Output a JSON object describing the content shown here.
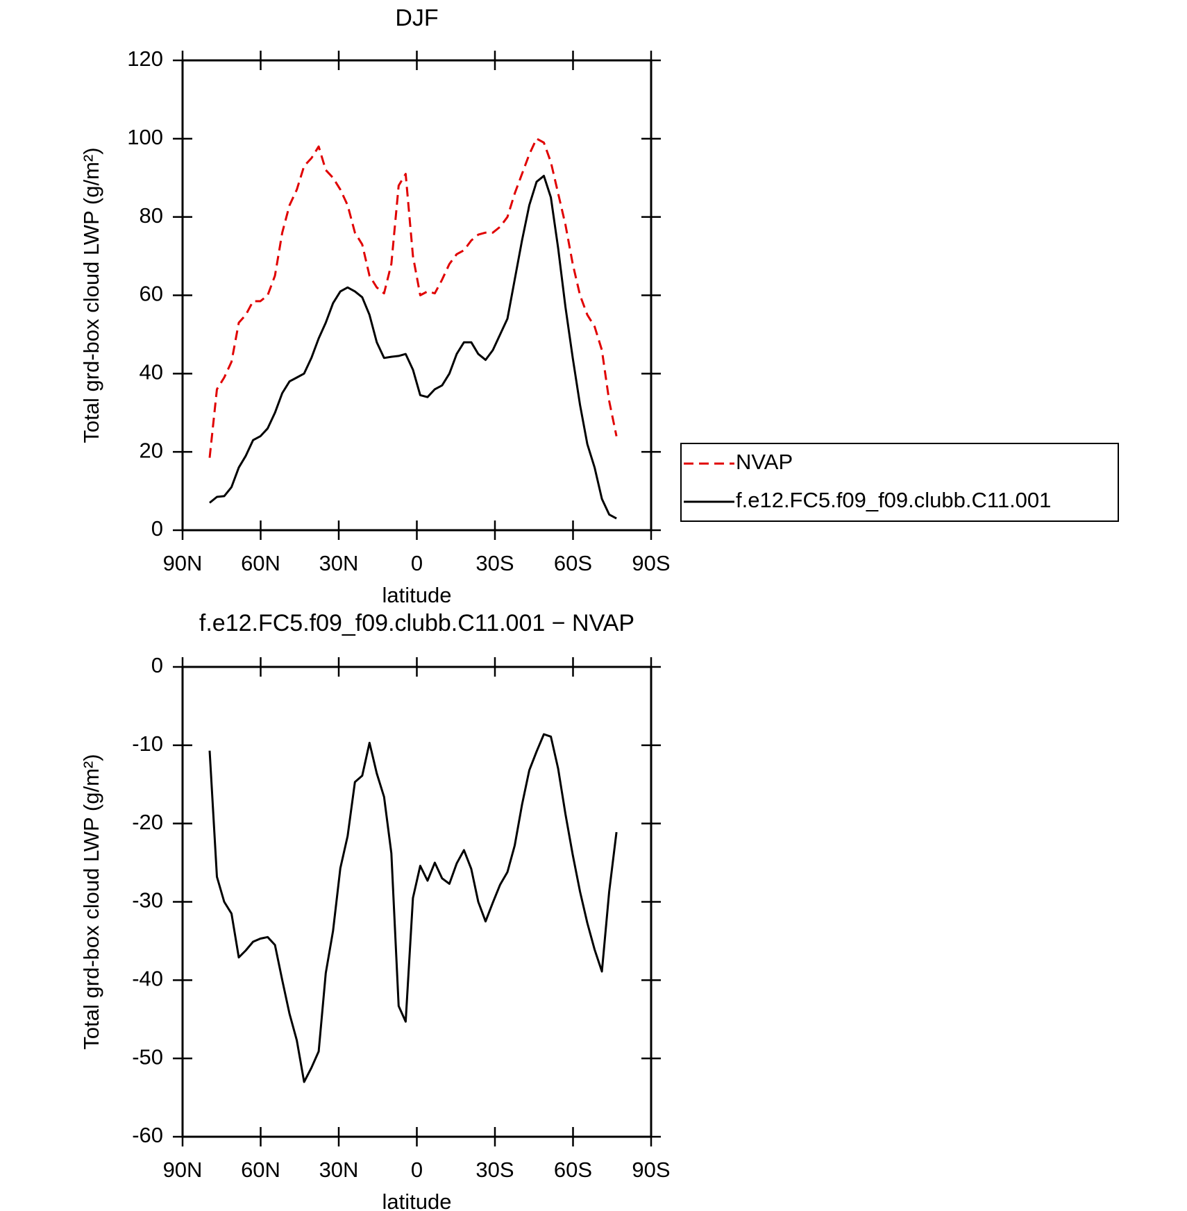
{
  "chart_data": [
    {
      "type": "line",
      "title": "DJF",
      "xlabel": "latitude",
      "ylabel": "Total grd-box cloud LWP (g/m²)",
      "x": [
        79.6,
        76.8,
        74.0,
        71.2,
        68.4,
        65.7,
        62.9,
        60.1,
        57.3,
        54.5,
        51.7,
        48.9,
        46.1,
        43.3,
        40.5,
        37.7,
        35.0,
        32.2,
        29.4,
        26.6,
        23.8,
        21.0,
        18.2,
        15.4,
        12.6,
        9.8,
        7.0,
        4.3,
        1.5,
        -1.3,
        -4.1,
        -6.9,
        -9.7,
        -12.5,
        -15.3,
        -18.1,
        -20.9,
        -23.6,
        -26.4,
        -29.2,
        -32.0,
        -34.8,
        -37.6,
        -40.4,
        -43.2,
        -46.0,
        -48.8,
        -51.5,
        -54.3,
        -57.1,
        -59.9,
        -62.7,
        -65.5,
        -68.3,
        -71.1,
        -73.9,
        -76.7
      ],
      "series": [
        {
          "name": "NVAP",
          "color": "#e00000",
          "dash": true,
          "values": [
            18.5,
            36,
            39,
            43,
            53,
            55,
            58.5,
            58.5,
            60,
            65,
            76,
            83,
            87,
            93,
            95,
            98,
            92,
            90,
            87,
            83,
            76,
            73,
            65,
            62,
            60.5,
            68,
            88,
            91,
            70,
            60,
            61,
            60.5,
            64,
            68,
            70.5,
            71.5,
            74,
            75.5,
            76,
            76,
            77.5,
            80,
            86,
            91,
            96,
            100,
            99,
            94,
            86,
            78,
            68,
            60,
            55,
            52,
            46,
            33,
            24
          ]
        },
        {
          "name": "f.e12.FC5.f09_f09.clubb.C11.001",
          "color": "#000000",
          "dash": false,
          "values": [
            7,
            8.5,
            8.7,
            11,
            16,
            19,
            23,
            24,
            26,
            30,
            35,
            38,
            39,
            40,
            44,
            49,
            53,
            58,
            61,
            62,
            61,
            59.5,
            55,
            48,
            44,
            44.3,
            44.5,
            45,
            41,
            34.5,
            34,
            36,
            37,
            40,
            45,
            48,
            48,
            45,
            43.5,
            46,
            50,
            54,
            64,
            74,
            83,
            89,
            90.5,
            85,
            72,
            57,
            44,
            32,
            22,
            16,
            8,
            4,
            3
          ]
        }
      ],
      "xlim": [
        90,
        -90
      ],
      "xticks": [
        {
          "value": 90,
          "label": "90N"
        },
        {
          "value": 60,
          "label": "60N"
        },
        {
          "value": 30,
          "label": "30N"
        },
        0,
        {
          "value": -30,
          "label": "30S"
        },
        {
          "value": -60,
          "label": "60S"
        },
        {
          "value": -90,
          "label": "90S"
        }
      ],
      "ylim": [
        0,
        120
      ],
      "yticks": [
        0,
        20,
        40,
        60,
        80,
        100,
        120
      ],
      "legend": "right"
    },
    {
      "type": "line",
      "title": "f.e12.FC5.f09_f09.clubb.C11.001 − NVAP",
      "xlabel": "latitude",
      "ylabel": "Total grd-box cloud LWP (g/m²)",
      "x": [
        79.6,
        76.8,
        74.0,
        71.2,
        68.4,
        65.7,
        62.9,
        60.1,
        57.3,
        54.5,
        51.7,
        48.9,
        46.1,
        43.3,
        40.5,
        37.7,
        35.0,
        32.2,
        29.4,
        26.6,
        23.8,
        21.0,
        18.2,
        15.4,
        12.6,
        9.8,
        7.0,
        4.3,
        1.5,
        -1.3,
        -4.1,
        -6.9,
        -9.7,
        -12.5,
        -15.3,
        -18.1,
        -20.9,
        -23.6,
        -26.4,
        -29.2,
        -32.0,
        -34.8,
        -37.6,
        -40.4,
        -43.2,
        -46.0,
        -48.8,
        -51.5,
        -54.3,
        -57.1,
        -59.9,
        -62.7,
        -65.5,
        -68.3,
        -71.1,
        -73.9,
        -76.7
      ],
      "values": [
        -10.7,
        -26.8,
        -30,
        -31.5,
        -37.1,
        -36.2,
        -35.1,
        -34.7,
        -34.5,
        -35.5,
        -40,
        -44.3,
        -47.7,
        -53,
        -51.2,
        -49.1,
        -39.1,
        -33.7,
        -25.7,
        -21.6,
        -14.7,
        -13.9,
        -9.7,
        -13.6,
        -16.6,
        -23.8,
        -43.3,
        -45.3,
        -29.5,
        -25.4,
        -27.3,
        -25,
        -27,
        -27.7,
        -25.1,
        -23.4,
        -25.8,
        -30,
        -32.5,
        -30.1,
        -27.8,
        -26.2,
        -22.8,
        -17.6,
        -13.2,
        -10.8,
        -8.6,
        -8.9,
        -13,
        -18.8,
        -24,
        -28.7,
        -32.7,
        -36.1,
        -38.9,
        -28.7,
        -21.1
      ],
      "color": "#000000",
      "xlim": [
        90,
        -90
      ],
      "xticks": [
        {
          "value": 90,
          "label": "90N"
        },
        {
          "value": 60,
          "label": "60N"
        },
        {
          "value": 30,
          "label": "30N"
        },
        0,
        {
          "value": -30,
          "label": "30S"
        },
        {
          "value": -60,
          "label": "60S"
        },
        {
          "value": -90,
          "label": "90S"
        }
      ],
      "ylim": [
        -60,
        0
      ],
      "yticks": [
        -60,
        -50,
        -40,
        -30,
        -20,
        -10,
        0
      ]
    }
  ]
}
